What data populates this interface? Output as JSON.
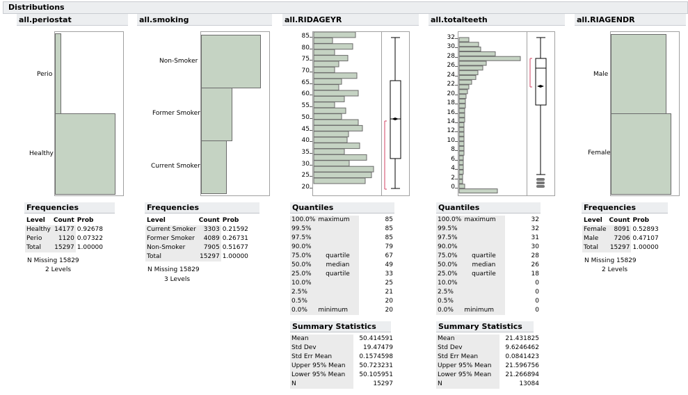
{
  "title": "Distributions",
  "periostat": {
    "header": "all.periostat",
    "bars": [
      {
        "label": "Perio",
        "prob": 0.07322
      },
      {
        "label": "Healthy",
        "prob": 0.92678
      }
    ],
    "freq_title": "Frequencies",
    "cols": [
      "Level",
      "Count",
      "Prob"
    ],
    "rows": [
      [
        "Healthy",
        "14177",
        "0.92678"
      ],
      [
        "Perio",
        "1120",
        "0.07322"
      ],
      [
        "Total",
        "15297",
        "1.00000"
      ]
    ],
    "missing": "N Missing  15829",
    "levels": "2  Levels"
  },
  "smoking": {
    "header": "all.smoking",
    "bars": [
      {
        "label": "Non-Smoker",
        "prob": 0.51677
      },
      {
        "label": "Former Smoker",
        "prob": 0.26731
      },
      {
        "label": "Current Smoker",
        "prob": 0.21592
      }
    ],
    "freq_title": "Frequencies",
    "cols": [
      "Level",
      "Count",
      "Prob"
    ],
    "rows": [
      [
        "Current Smoker",
        "3303",
        "0.21592"
      ],
      [
        "Former Smoker",
        "4089",
        "0.26731"
      ],
      [
        "Non-Smoker",
        "7905",
        "0.51677"
      ],
      [
        "Total",
        "15297",
        "1.00000"
      ]
    ],
    "missing": "N Missing  15829",
    "levels": "3  Levels"
  },
  "age": {
    "header": "all.RIDAGEYR",
    "yticks": [
      "85",
      "80",
      "75",
      "70",
      "65",
      "60",
      "55",
      "50",
      "45",
      "40",
      "35",
      "30",
      "25",
      "20"
    ],
    "quant_title": "Quantiles",
    "quantiles": [
      [
        "100.0%",
        "maximum",
        "85"
      ],
      [
        "99.5%",
        "",
        "85"
      ],
      [
        "97.5%",
        "",
        "85"
      ],
      [
        "90.0%",
        "",
        "79"
      ],
      [
        "75.0%",
        "quartile",
        "67"
      ],
      [
        "50.0%",
        "median",
        "49"
      ],
      [
        "25.0%",
        "quartile",
        "33"
      ],
      [
        "10.0%",
        "",
        "25"
      ],
      [
        "2.5%",
        "",
        "21"
      ],
      [
        "0.5%",
        "",
        "20"
      ],
      [
        "0.0%",
        "minimum",
        "20"
      ]
    ],
    "sum_title": "Summary Statistics",
    "summary": [
      [
        "Mean",
        "50.414591"
      ],
      [
        "Std Dev",
        "19.47479"
      ],
      [
        "Std Err Mean",
        "0.1574598"
      ],
      [
        "Upper 95% Mean",
        "50.723231"
      ],
      [
        "Lower 95% Mean",
        "50.105951"
      ],
      [
        "N",
        "15297"
      ]
    ]
  },
  "teeth": {
    "header": "all.totalteeth",
    "yticks": [
      "32",
      "30",
      "28",
      "26",
      "24",
      "22",
      "20",
      "18",
      "16",
      "14",
      "12",
      "10",
      "8",
      "6",
      "4",
      "2",
      "0"
    ],
    "quant_title": "Quantiles",
    "quantiles": [
      [
        "100.0%",
        "maximum",
        "32"
      ],
      [
        "99.5%",
        "",
        "32"
      ],
      [
        "97.5%",
        "",
        "31"
      ],
      [
        "90.0%",
        "",
        "30"
      ],
      [
        "75.0%",
        "quartile",
        "28"
      ],
      [
        "50.0%",
        "median",
        "26"
      ],
      [
        "25.0%",
        "quartile",
        "18"
      ],
      [
        "10.0%",
        "",
        "0"
      ],
      [
        "2.5%",
        "",
        "0"
      ],
      [
        "0.5%",
        "",
        "0"
      ],
      [
        "0.0%",
        "minimum",
        "0"
      ]
    ],
    "sum_title": "Summary Statistics",
    "summary": [
      [
        "Mean",
        "21.431825"
      ],
      [
        "Std Dev",
        "9.6246462"
      ],
      [
        "Std Err Mean",
        "0.0841423"
      ],
      [
        "Upper 95% Mean",
        "21.596756"
      ],
      [
        "Lower 95% Mean",
        "21.266894"
      ],
      [
        "N",
        "13084"
      ]
    ]
  },
  "gender": {
    "header": "all.RIAGENDR",
    "bars": [
      {
        "label": "Male",
        "prob": 0.47107
      },
      {
        "label": "Female",
        "prob": 0.52893
      }
    ],
    "freq_title": "Frequencies",
    "cols": [
      "Level",
      "Count",
      "Prob"
    ],
    "rows": [
      [
        "Female",
        "8091",
        "0.52893"
      ],
      [
        "Male",
        "7206",
        "0.47107"
      ],
      [
        "Total",
        "15297",
        "1.00000"
      ]
    ],
    "missing": "N Missing  15829",
    "levels": "2  Levels"
  }
}
